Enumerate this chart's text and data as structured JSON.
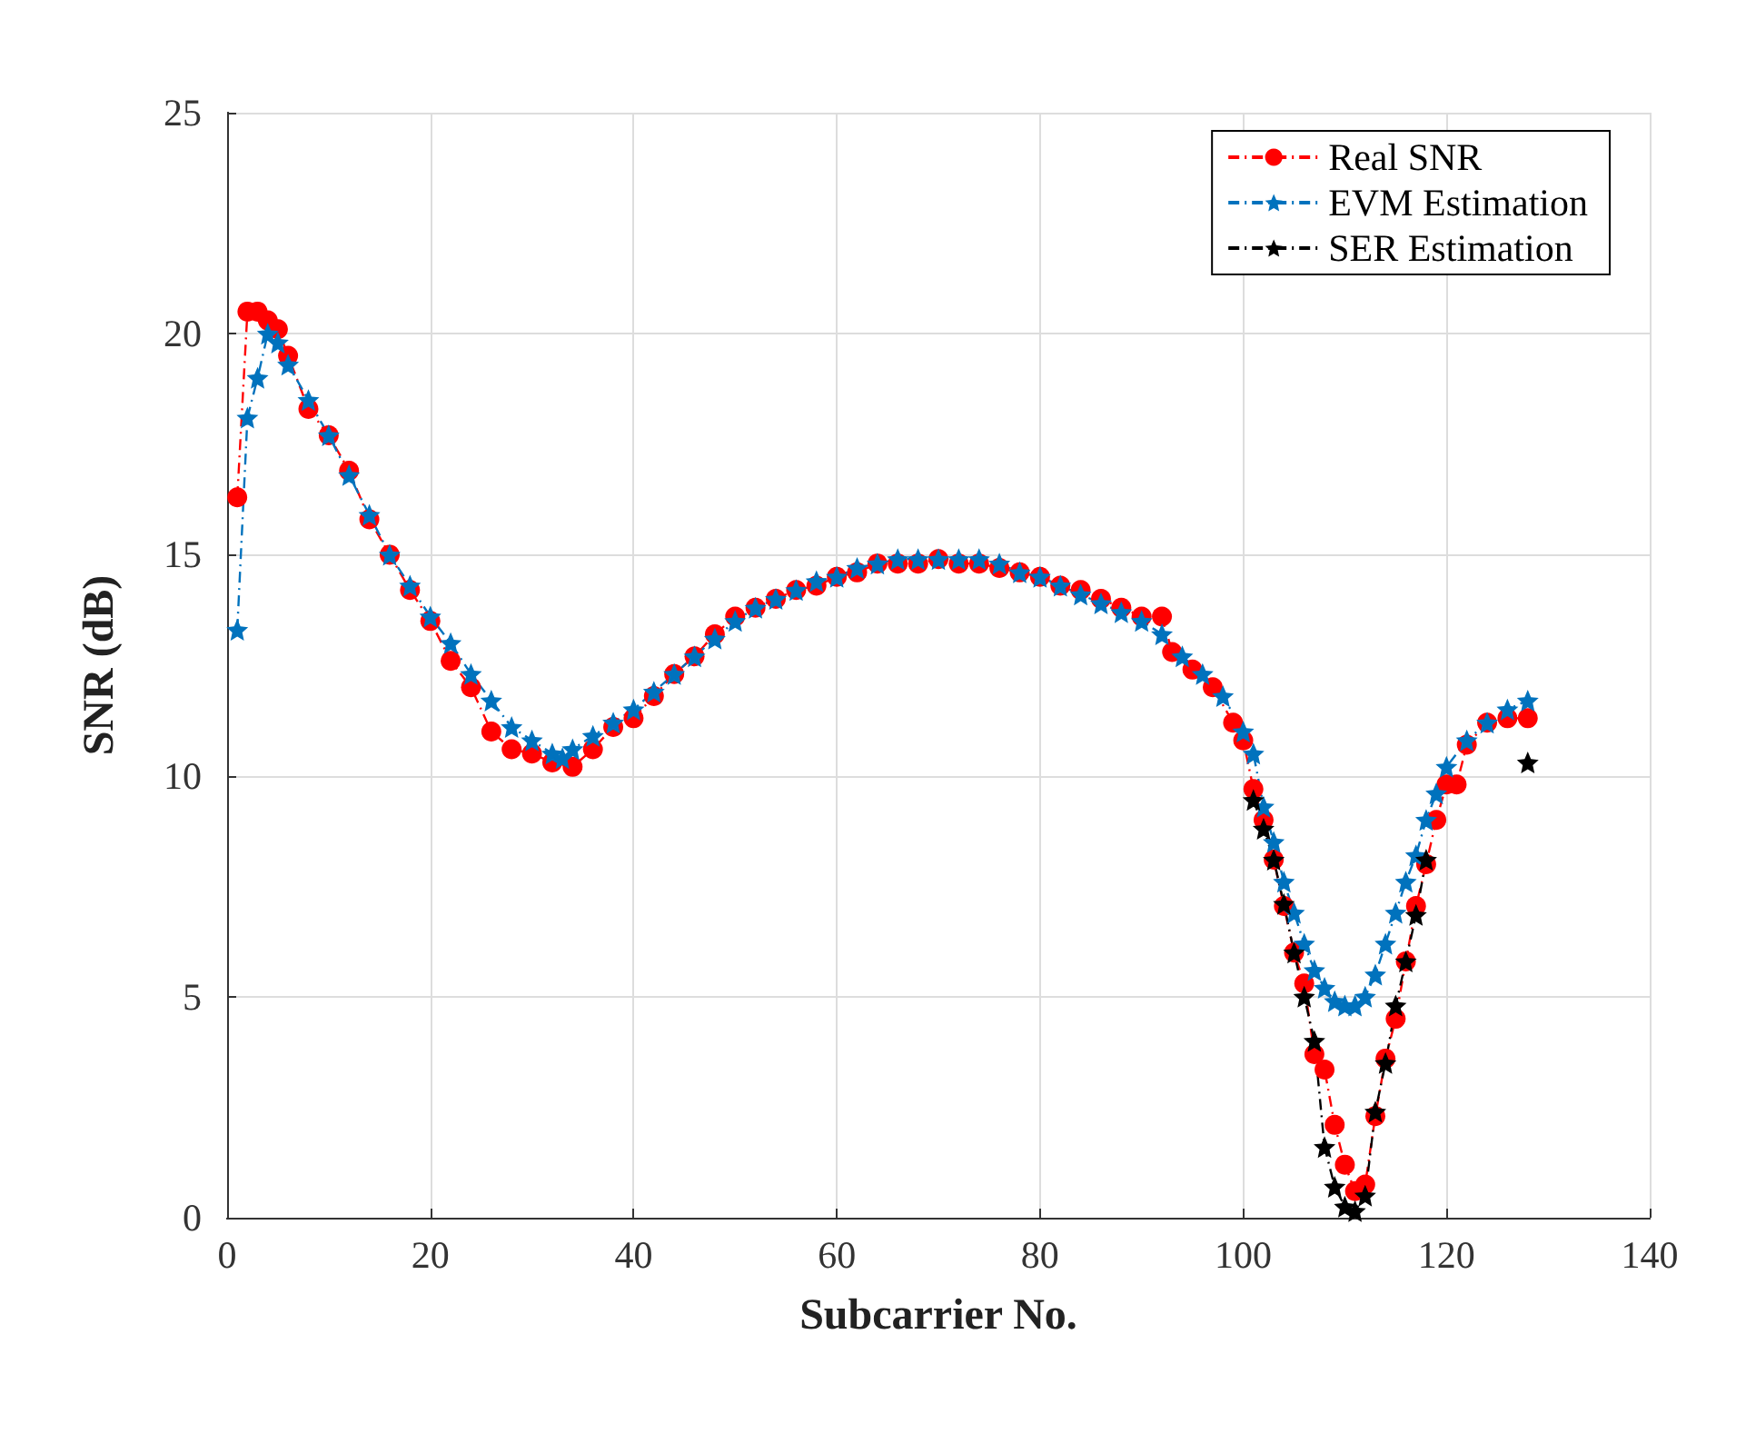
{
  "chart_data": {
    "type": "line",
    "xlabel": "Subcarrier No.",
    "ylabel": "SNR (dB)",
    "xlim": [
      0,
      140
    ],
    "xticks": [
      0,
      20,
      40,
      60,
      80,
      100,
      120,
      140
    ],
    "ylim": [
      0,
      25
    ],
    "yticks": [
      0,
      5,
      10,
      15,
      20,
      25
    ],
    "grid": true,
    "legend": "top right",
    "line_style": "dashed",
    "series": [
      {
        "name": "Real SNR",
        "color": "#ff0000",
        "marker": "circle",
        "x": [
          1,
          2,
          3,
          4,
          5,
          6,
          8,
          10,
          12,
          14,
          16,
          18,
          20,
          22,
          24,
          26,
          28,
          30,
          32,
          34,
          36,
          38,
          40,
          42,
          44,
          46,
          48,
          50,
          52,
          54,
          56,
          58,
          60,
          62,
          64,
          66,
          68,
          70,
          72,
          74,
          76,
          78,
          80,
          82,
          84,
          86,
          88,
          90,
          92,
          93,
          95,
          97,
          99,
          100,
          101,
          102,
          103,
          104,
          105,
          106,
          107,
          108,
          109,
          110,
          111,
          112,
          113,
          114,
          115,
          116,
          117,
          118,
          119,
          120,
          121,
          122,
          124,
          126,
          128
        ],
        "values": [
          16.3,
          20.5,
          20.5,
          20.3,
          20.1,
          19.5,
          18.3,
          17.7,
          16.9,
          15.8,
          15,
          14.2,
          13.5,
          12.6,
          12,
          11,
          10.6,
          10.5,
          10.3,
          10.2,
          10.6,
          11.1,
          11.3,
          11.8,
          12.3,
          12.7,
          13.2,
          13.6,
          13.8,
          14,
          14.2,
          14.3,
          14.5,
          14.6,
          14.8,
          14.8,
          14.8,
          14.9,
          14.8,
          14.8,
          14.7,
          14.6,
          14.5,
          14.3,
          14.2,
          14,
          13.8,
          13.6,
          13.6,
          12.8,
          12.4,
          12,
          11.2,
          10.8,
          9.7,
          9,
          8.1,
          7.05,
          6,
          5.3,
          3.7,
          3.35,
          2.1,
          1.2,
          0.6,
          0.75,
          2.3,
          3.6,
          4.5,
          5.8,
          7.05,
          8,
          9,
          9.8,
          9.8,
          10.7,
          11.2,
          11.3,
          11.3
        ]
      },
      {
        "name": "EVM Estimation",
        "color": "#0072bd",
        "marker": "star",
        "x": [
          1,
          2,
          3,
          4,
          5,
          6,
          8,
          10,
          12,
          14,
          16,
          18,
          20,
          22,
          24,
          26,
          28,
          30,
          32,
          33,
          34,
          36,
          38,
          40,
          42,
          44,
          46,
          48,
          50,
          52,
          54,
          56,
          58,
          60,
          62,
          64,
          66,
          68,
          70,
          72,
          74,
          76,
          78,
          80,
          82,
          84,
          86,
          88,
          90,
          92,
          94,
          96,
          98,
          100,
          101,
          102,
          103,
          104,
          105,
          106,
          107,
          108,
          109,
          110,
          111,
          112,
          113,
          114,
          115,
          116,
          117,
          118,
          119,
          120,
          122,
          124,
          126,
          128
        ],
        "values": [
          13.3,
          18.1,
          19,
          20,
          19.8,
          19.3,
          18.5,
          17.7,
          16.8,
          15.9,
          15,
          14.3,
          13.6,
          13,
          12.3,
          11.7,
          11.1,
          10.8,
          10.5,
          10.4,
          10.6,
          10.9,
          11.2,
          11.5,
          11.9,
          12.3,
          12.7,
          13.1,
          13.5,
          13.8,
          14,
          14.2,
          14.4,
          14.5,
          14.7,
          14.8,
          14.9,
          14.9,
          14.9,
          14.9,
          14.9,
          14.8,
          14.6,
          14.5,
          14.3,
          14.1,
          13.9,
          13.7,
          13.5,
          13.2,
          12.7,
          12.3,
          11.8,
          11,
          10.5,
          9.3,
          8.5,
          7.6,
          6.9,
          6.2,
          5.6,
          5.2,
          4.9,
          4.8,
          4.8,
          5,
          5.5,
          6.2,
          6.9,
          7.6,
          8.2,
          9,
          9.6,
          10.2,
          10.8,
          11.2,
          11.5,
          11.7
        ]
      },
      {
        "name": "SER Estimation",
        "color": "#000000",
        "marker": "star",
        "x": [
          101,
          102,
          103,
          104,
          105,
          106,
          107,
          108,
          109,
          110,
          111,
          112,
          113,
          114,
          115,
          116,
          117,
          118,
          119,
          128
        ],
        "values": [
          9.45,
          8.8,
          8.1,
          7.1,
          6,
          5,
          4,
          1.6,
          0.7,
          0.25,
          0.15,
          0.5,
          2.4,
          3.5,
          4.8,
          5.8,
          6.85,
          8.1,
          null,
          10.3
        ]
      }
    ]
  }
}
